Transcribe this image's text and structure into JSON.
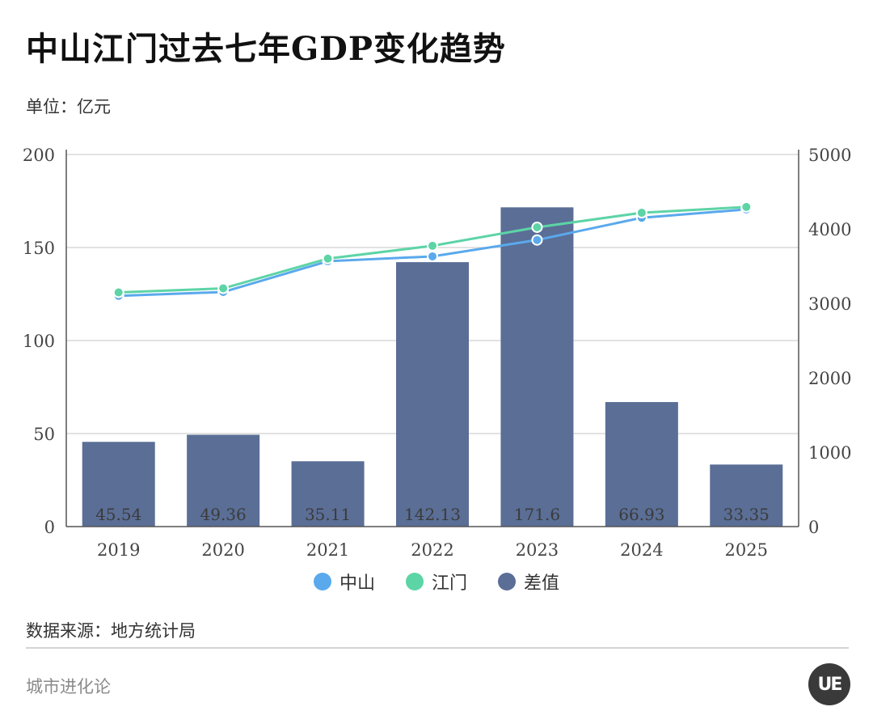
{
  "title": "中山江门过去七年GDP变化趋势",
  "unit_label": "单位：亿元",
  "source_label": "数据来源：地方统计局",
  "brand_label": "城市进化论",
  "logo_text": "UE",
  "colors": {
    "zhongshan": "#5aa9ec",
    "jiangmen": "#5dd4a6",
    "diff": "#5a6e96",
    "grid": "#d9d9d9",
    "axis": "#555555"
  },
  "legend": [
    {
      "label": "中山",
      "color": "#5aa9ec"
    },
    {
      "label": "江门",
      "color": "#5dd4a6"
    },
    {
      "label": "差值",
      "color": "#5a6e96"
    }
  ],
  "chart_data": {
    "type": "bar",
    "categories": [
      "2019",
      "2020",
      "2021",
      "2022",
      "2023",
      "2024",
      "2025"
    ],
    "series": [
      {
        "name": "差值",
        "type": "bar",
        "axis": "left",
        "values": [
          45.54,
          49.36,
          35.11,
          142.13,
          171.6,
          66.93,
          33.35
        ],
        "labels": [
          "45.54",
          "49.36",
          "35.11",
          "142.13",
          "171.6",
          "66.93",
          "33.35"
        ]
      },
      {
        "name": "中山",
        "type": "line",
        "axis": "right",
        "values": [
          3101,
          3152,
          3566,
          3631,
          3851,
          4150,
          4262
        ]
      },
      {
        "name": "江门",
        "type": "line",
        "axis": "right",
        "values": [
          3147,
          3201,
          3601,
          3773,
          4022,
          4217,
          4295
        ]
      }
    ],
    "ylim_left": [
      0,
      200
    ],
    "yticks_left": [
      "0",
      "50",
      "100",
      "150",
      "200"
    ],
    "ylim_right": [
      0,
      5000
    ],
    "yticks_right": [
      "0",
      "1000",
      "2000",
      "3000",
      "4000",
      "5000"
    ],
    "grid": true
  }
}
